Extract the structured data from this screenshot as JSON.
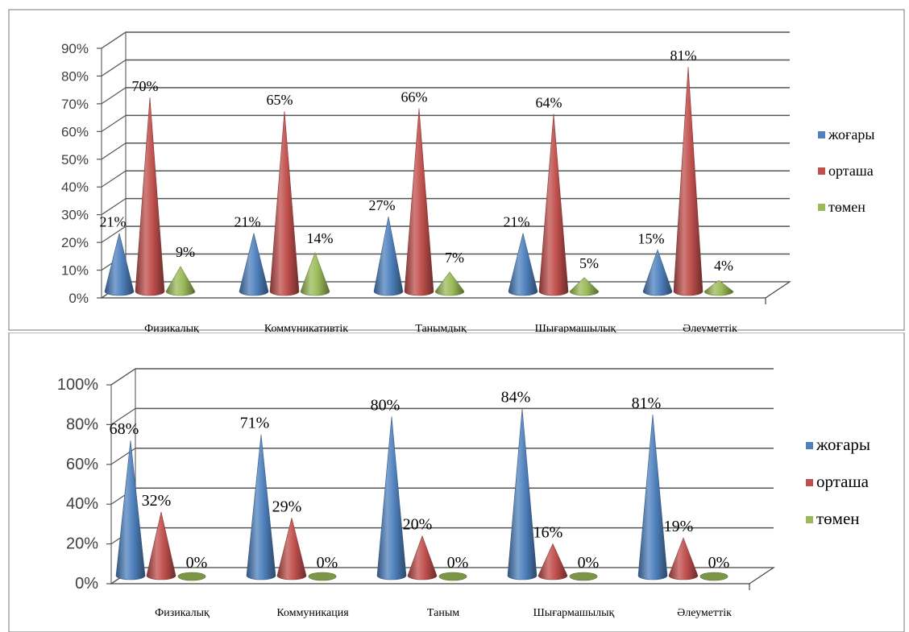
{
  "chart_data": [
    {
      "type": "bar",
      "shape": "cone-3d",
      "categories": [
        "Физикалық",
        "Коммуникативтік",
        "Танымдық",
        "Шығармашылық",
        "Әлеуметтік"
      ],
      "ticks": [
        "0%",
        "10%",
        "20%",
        "30%",
        "40%",
        "50%",
        "60%",
        "70%",
        "80%",
        "90%"
      ],
      "ylim": [
        0,
        90
      ],
      "grid": true,
      "legend": "right",
      "series": [
        {
          "name": "жоғары",
          "color": "#4f81bd",
          "values": [
            21,
            21,
            27,
            21,
            15
          ],
          "labels": [
            "21%",
            "21%",
            "27%",
            "21%",
            "15%"
          ]
        },
        {
          "name": "орташа",
          "color": "#c0504d",
          "values": [
            70,
            65,
            66,
            64,
            81
          ],
          "labels": [
            "70%",
            "65%",
            "66%",
            "64%",
            "81%"
          ]
        },
        {
          "name": "төмен",
          "color": "#9bbb59",
          "values": [
            9,
            14,
            7,
            5,
            4
          ],
          "labels": [
            "9%",
            "14%",
            "7%",
            "5%",
            "4%"
          ]
        }
      ]
    },
    {
      "type": "bar",
      "shape": "cone-3d",
      "categories": [
        "Физикалық",
        "Коммуникация",
        "Таным",
        "Шығармашылық",
        "Әлеуметтік"
      ],
      "ticks": [
        "0%",
        "20%",
        "40%",
        "60%",
        "80%",
        "100%"
      ],
      "ylim": [
        0,
        100
      ],
      "grid": true,
      "legend": "right",
      "series": [
        {
          "name": "жоғары",
          "color": "#4f81bd",
          "values": [
            68,
            71,
            80,
            84,
            81
          ],
          "labels": [
            "68%",
            "71%",
            "80%",
            "84%",
            "81%"
          ]
        },
        {
          "name": "орташа",
          "color": "#c0504d",
          "values": [
            32,
            29,
            20,
            16,
            19
          ],
          "labels": [
            "32%",
            "29%",
            "20%",
            "16%",
            "19%"
          ]
        },
        {
          "name": "төмен",
          "color": "#9bbb59",
          "values": [
            0,
            0,
            0,
            0,
            0
          ],
          "labels": [
            "0%",
            "0%",
            "0%",
            "0%",
            "0%"
          ]
        }
      ]
    }
  ]
}
